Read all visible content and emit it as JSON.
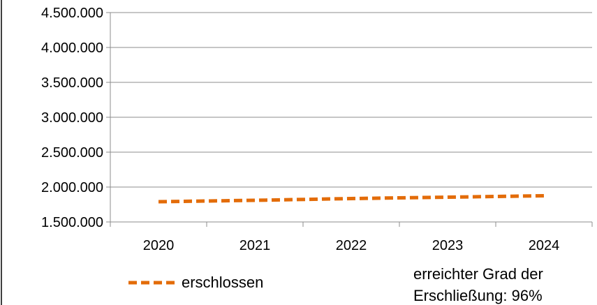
{
  "chart_data": {
    "type": "line",
    "title": "",
    "xlabel": "",
    "ylabel": "",
    "categories": [
      "2020",
      "2021",
      "2022",
      "2023",
      "2024"
    ],
    "ylim": [
      1500000,
      4500000
    ],
    "yticks": [
      1500000,
      2000000,
      2500000,
      3000000,
      3500000,
      4000000,
      4500000
    ],
    "ytick_labels": [
      "1.500.000",
      "2.000.000",
      "2.500.000",
      "3.000.000",
      "3.500.000",
      "4.000.000",
      "4.500.000"
    ],
    "grid": "horizontal",
    "legend_position": "bottom-left",
    "series": [
      {
        "name": "erschlossen",
        "color": "#E36C09",
        "style": "dashed",
        "values": [
          1790000,
          1810000,
          1835000,
          1855000,
          1875000
        ]
      }
    ],
    "annotation": {
      "lines": [
        "erreichter Grad der",
        "Erschließung: 96%"
      ]
    }
  }
}
